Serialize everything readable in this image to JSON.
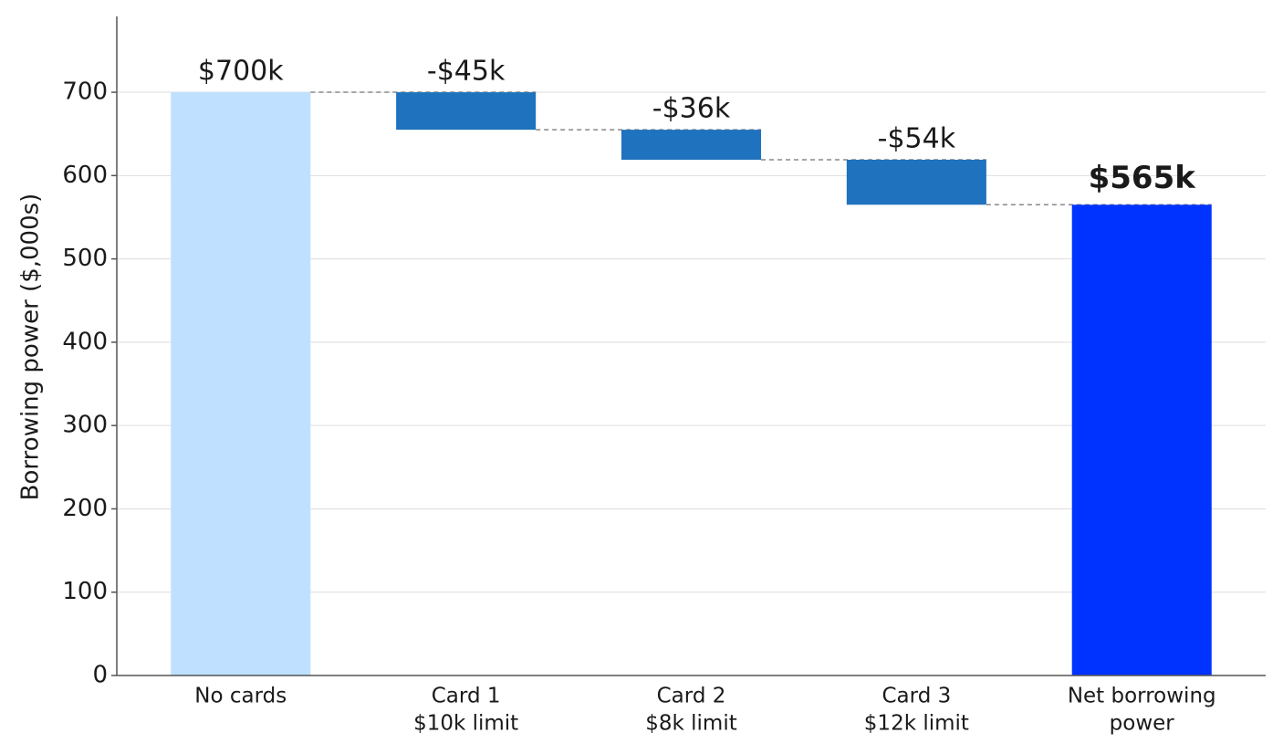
{
  "chart_data": {
    "type": "waterfall",
    "y_label": "Borrowing power ($,000s)",
    "categories": [
      [
        "No cards"
      ],
      [
        "Card 1",
        "$10k limit"
      ],
      [
        "Card 2",
        "$8k limit"
      ],
      [
        "Card 3",
        "$12k limit"
      ],
      [
        "Net borrowing",
        "power"
      ]
    ],
    "values": [
      700,
      -45,
      -36,
      -54,
      565
    ],
    "value_labels": [
      "$700k",
      "-$45k",
      "-$36k",
      "-$54k",
      "$565k"
    ],
    "colors": [
      "#bfe1ff",
      "#1f72bd",
      "#1f72bd",
      "#1f72bd",
      "#0033ff"
    ],
    "ylim": [
      0,
      791
    ],
    "yticks": [
      0,
      100,
      200,
      300,
      400,
      500,
      600,
      700
    ],
    "grid": true
  }
}
